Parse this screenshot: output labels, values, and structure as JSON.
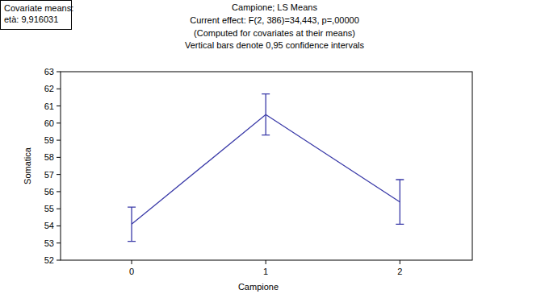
{
  "chart_data": {
    "type": "line",
    "title": "Campione; LS Means",
    "subtitle": [
      "Current effect: F(2, 386)=34,443, p=,00000",
      "(Computed for covariates at their means)",
      "Vertical bars denote 0,95 confidence intervals"
    ],
    "annotations": [
      "Covariate means:",
      "età: 9,916031"
    ],
    "x_label": "Campione",
    "y_label": "Somatica",
    "categories": [
      "0",
      "1",
      "2"
    ],
    "values": [
      54.1,
      60.5,
      55.4
    ],
    "errors": [
      1.0,
      1.2,
      1.3
    ],
    "color": "#3a3aa8",
    "ylim": [
      52,
      63
    ],
    "yticks": [
      52,
      53,
      54,
      55,
      56,
      57,
      58,
      59,
      60,
      61,
      62,
      63
    ],
    "grid": false
  }
}
